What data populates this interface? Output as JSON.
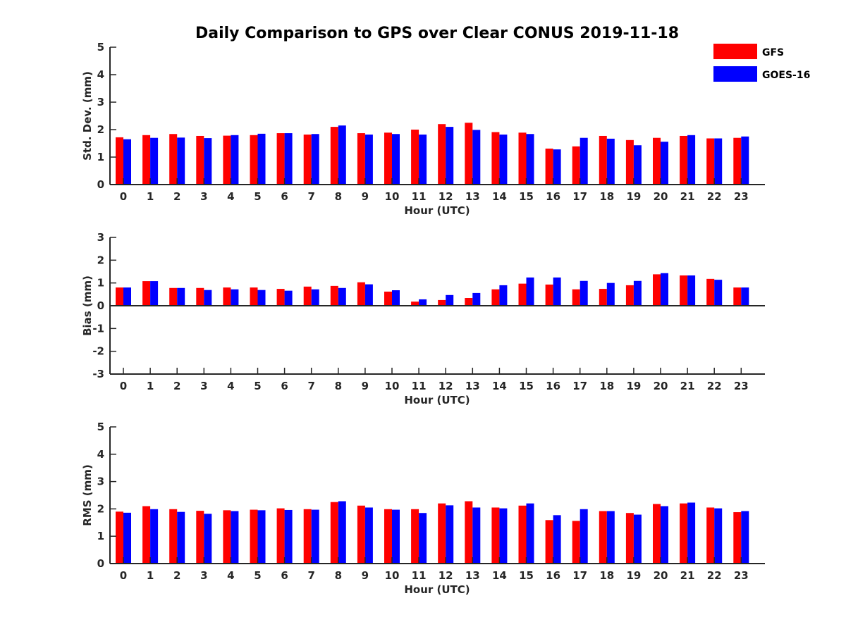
{
  "title": "Daily Comparison to GPS over Clear CONUS 2019-11-18",
  "legend": [
    {
      "name": "GFS",
      "color": "#ff0000"
    },
    {
      "name": "GOES-16",
      "color": "#0000ff"
    }
  ],
  "chart_data": [
    {
      "type": "bar",
      "ylabel": "Std. Dev. (mm)",
      "xlabel": "Hour (UTC)",
      "ylim": [
        0,
        5
      ],
      "yticks": [
        "0",
        "1",
        "2",
        "3",
        "4",
        "5"
      ],
      "categories": [
        "0",
        "1",
        "2",
        "3",
        "4",
        "5",
        "6",
        "7",
        "8",
        "9",
        "10",
        "11",
        "12",
        "13",
        "14",
        "15",
        "16",
        "17",
        "18",
        "19",
        "20",
        "21",
        "22",
        "23"
      ],
      "series": [
        {
          "name": "GFS",
          "color": "#ff0000",
          "values": [
            1.72,
            1.8,
            1.84,
            1.77,
            1.78,
            1.8,
            1.87,
            1.82,
            2.1,
            1.87,
            1.89,
            2.0,
            2.2,
            2.25,
            1.91,
            1.89,
            1.31,
            1.39,
            1.77,
            1.62,
            1.7,
            1.77,
            1.68,
            1.7
          ]
        },
        {
          "name": "GOES-16",
          "color": "#0000ff",
          "values": [
            1.65,
            1.7,
            1.71,
            1.69,
            1.8,
            1.85,
            1.87,
            1.84,
            2.15,
            1.82,
            1.84,
            1.82,
            2.1,
            1.99,
            1.82,
            1.84,
            1.28,
            1.7,
            1.67,
            1.43,
            1.56,
            1.8,
            1.68,
            1.75
          ]
        }
      ]
    },
    {
      "type": "bar",
      "ylabel": "Bias (mm)",
      "xlabel": "Hour (UTC)",
      "ylim": [
        -3,
        3
      ],
      "yticks": [
        "-3",
        "-2",
        "-1",
        "0",
        "1",
        "2",
        "3"
      ],
      "categories": [
        "0",
        "1",
        "2",
        "3",
        "4",
        "5",
        "6",
        "7",
        "8",
        "9",
        "10",
        "11",
        "12",
        "13",
        "14",
        "15",
        "16",
        "17",
        "18",
        "19",
        "20",
        "21",
        "22",
        "23"
      ],
      "series": [
        {
          "name": "GFS",
          "color": "#ff0000",
          "values": [
            0.8,
            1.08,
            0.78,
            0.78,
            0.8,
            0.8,
            0.74,
            0.84,
            0.87,
            1.03,
            0.62,
            0.18,
            0.25,
            0.34,
            0.72,
            0.97,
            0.93,
            0.72,
            0.74,
            0.9,
            1.38,
            1.33,
            1.18,
            0.8
          ]
        },
        {
          "name": "GOES-16",
          "color": "#0000ff",
          "values": [
            0.8,
            1.08,
            0.78,
            0.69,
            0.72,
            0.69,
            0.66,
            0.72,
            0.78,
            0.94,
            0.68,
            0.28,
            0.47,
            0.56,
            0.9,
            1.24,
            1.24,
            1.09,
            1.0,
            1.09,
            1.43,
            1.33,
            1.14,
            0.8
          ]
        }
      ]
    },
    {
      "type": "bar",
      "ylabel": "RMS (mm)",
      "xlabel": "Hour (UTC)",
      "ylim": [
        0,
        5
      ],
      "yticks": [
        "0",
        "1",
        "2",
        "3",
        "4",
        "5"
      ],
      "categories": [
        "0",
        "1",
        "2",
        "3",
        "4",
        "5",
        "6",
        "7",
        "8",
        "9",
        "10",
        "11",
        "12",
        "13",
        "14",
        "15",
        "16",
        "17",
        "18",
        "19",
        "20",
        "21",
        "22",
        "23"
      ],
      "series": [
        {
          "name": "GFS",
          "color": "#ff0000",
          "values": [
            1.9,
            2.1,
            1.99,
            1.93,
            1.95,
            1.97,
            2.02,
            1.99,
            2.25,
            2.12,
            1.99,
            1.99,
            2.2,
            2.28,
            2.05,
            2.12,
            1.59,
            1.56,
            1.92,
            1.85,
            2.18,
            2.2,
            2.05,
            1.88
          ]
        },
        {
          "name": "GOES-16",
          "color": "#0000ff",
          "values": [
            1.86,
            1.99,
            1.89,
            1.82,
            1.92,
            1.95,
            1.96,
            1.97,
            2.28,
            2.05,
            1.97,
            1.85,
            2.13,
            2.05,
            2.02,
            2.2,
            1.77,
            1.99,
            1.92,
            1.79,
            2.1,
            2.23,
            2.02,
            1.92
          ]
        }
      ]
    }
  ]
}
